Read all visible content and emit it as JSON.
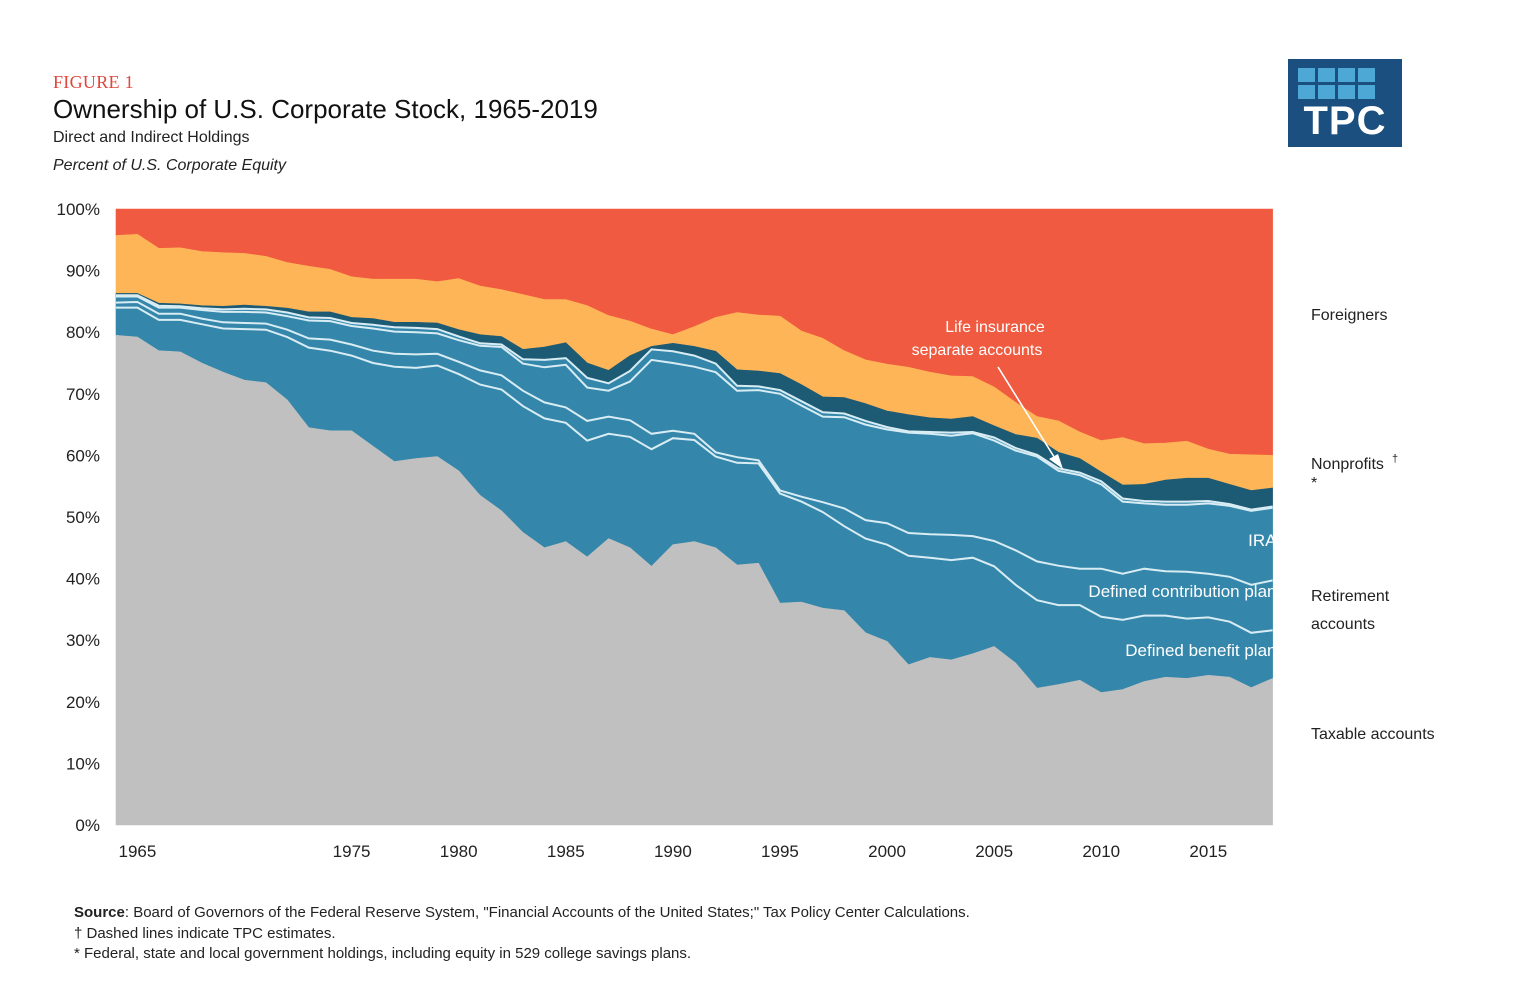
{
  "header": {
    "figure_label": "FIGURE 1",
    "title": "Ownership of U.S. Corporate Stock, 1965-2019",
    "subtitle": "Direct and Indirect Holdings",
    "unit": "Percent of U.S. Corporate Equity"
  },
  "logo": {
    "text": "TPC",
    "color": "#1b4f80",
    "accent": "#4ea8d6"
  },
  "colors": {
    "taxable": "#c0c0c0",
    "retirement": "#3486aa",
    "government": "#1d5a74",
    "nonprofits": "#fdb557",
    "foreigners": "#f05a40",
    "boundary_line": "#d8ecf4"
  },
  "chart_data": {
    "type": "area",
    "stacked": true,
    "ylim": [
      0,
      100
    ],
    "xlim": [
      1964,
      2019
    ],
    "y_ticks": [
      "0%",
      "10%",
      "20%",
      "30%",
      "40%",
      "50%",
      "60%",
      "70%",
      "80%",
      "90%",
      "100%"
    ],
    "x_ticks": [
      "1965",
      "1975",
      "1980",
      "1985",
      "1990",
      "1995",
      "2000",
      "2005",
      "2010",
      "2015"
    ],
    "x": [
      1964,
      1965,
      1966,
      1967,
      1968,
      1969,
      1970,
      1971,
      1972,
      1973,
      1974,
      1975,
      1976,
      1977,
      1978,
      1979,
      1980,
      1981,
      1982,
      1983,
      1984,
      1985,
      1986,
      1987,
      1988,
      1989,
      1990,
      1991,
      1992,
      1993,
      1994,
      1995,
      1996,
      1997,
      1998,
      1999,
      2000,
      2001,
      2002,
      2003,
      2004,
      2005,
      2006,
      2007,
      2008,
      2009,
      2010,
      2011,
      2012,
      2013,
      2014,
      2015,
      2016,
      2017,
      2018
    ],
    "boundaries_note": "cumulative percent, bottom to top",
    "boundaries": {
      "taxable_top": [
        79.5,
        79.2,
        77.0,
        76.8,
        75.0,
        73.5,
        72.2,
        71.8,
        69.0,
        64.5,
        64.0,
        64.0,
        61.5,
        59.0,
        59.5,
        59.8,
        57.5,
        53.5,
        51.0,
        47.5,
        45.0,
        46.0,
        43.5,
        46.5,
        45.0,
        42.0,
        45.5,
        46.0,
        45.0,
        42.2,
        42.5,
        36.0,
        36.2,
        35.2,
        34.8,
        31.2,
        29.8,
        26.0,
        27.2,
        26.8,
        27.8,
        29.0,
        26.3,
        22.2,
        22.8,
        23.5,
        21.5,
        22.0,
        23.3,
        24.0,
        23.8,
        24.3,
        24.0,
        22.3,
        23.8
      ],
      "db_top": [
        84.0,
        84.0,
        82.0,
        82.0,
        81.3,
        80.6,
        80.5,
        80.4,
        79.2,
        77.5,
        77.0,
        76.2,
        75.0,
        74.4,
        74.2,
        74.6,
        73.2,
        71.5,
        70.7,
        68.0,
        66.0,
        65.3,
        62.4,
        63.5,
        63.0,
        61.0,
        62.8,
        62.5,
        59.8,
        58.8,
        58.7,
        53.8,
        52.5,
        50.8,
        48.5,
        46.5,
        45.5,
        43.7,
        43.4,
        43.0,
        43.4,
        42.0,
        39.0,
        36.5,
        35.7,
        35.7,
        33.8,
        33.3,
        34.0,
        34.0,
        33.5,
        33.7,
        33.0,
        31.2,
        31.6
      ],
      "dc_top": [
        84.8,
        84.9,
        83.0,
        83.0,
        82.2,
        81.6,
        81.5,
        81.4,
        80.4,
        79.0,
        78.8,
        78.0,
        77.0,
        76.5,
        76.4,
        76.5,
        75.2,
        73.8,
        73.0,
        70.5,
        68.6,
        67.8,
        65.6,
        66.3,
        65.7,
        63.5,
        64.0,
        63.5,
        60.5,
        59.7,
        59.2,
        54.3,
        53.3,
        52.4,
        51.4,
        49.5,
        49.0,
        47.4,
        47.2,
        47.1,
        46.9,
        46.1,
        44.6,
        42.8,
        42.1,
        41.6,
        41.6,
        40.8,
        41.6,
        41.2,
        41.1,
        40.8,
        40.3,
        39.0,
        39.7
      ],
      "ira_top": [
        85.8,
        85.8,
        84.0,
        84.0,
        83.6,
        83.3,
        83.3,
        83.2,
        82.6,
        81.9,
        81.8,
        81.0,
        80.6,
        80.1,
        80.0,
        79.8,
        78.7,
        77.8,
        77.6,
        74.9,
        74.3,
        74.7,
        71.0,
        70.5,
        72.0,
        75.5,
        75.0,
        74.4,
        73.5,
        70.5,
        70.6,
        70.0,
        68.1,
        66.3,
        66.2,
        65.0,
        64.2,
        63.7,
        63.5,
        63.2,
        63.6,
        62.4,
        60.8,
        59.8,
        57.5,
        56.8,
        55.3,
        52.5,
        52.2,
        52.0,
        52.0,
        52.2,
        51.8,
        51.0,
        51.5
      ],
      "life_ins_top": [
        86.0,
        86.0,
        84.3,
        84.2,
        83.9,
        83.7,
        83.8,
        83.7,
        83.2,
        82.4,
        82.3,
        81.5,
        81.2,
        80.8,
        80.7,
        80.5,
        79.3,
        78.2,
        78.0,
        75.6,
        75.5,
        75.8,
        72.6,
        71.7,
        73.7,
        77.2,
        76.9,
        76.2,
        74.9,
        71.3,
        71.2,
        70.6,
        68.8,
        67.0,
        66.8,
        65.6,
        64.6,
        63.9,
        63.8,
        63.7,
        63.8,
        62.9,
        61.2,
        60.1,
        57.9,
        57.2,
        55.8,
        53.0,
        52.6,
        52.5,
        52.5,
        52.6,
        52.1,
        51.2,
        51.7
      ],
      "government_top": [
        86.3,
        86.3,
        84.7,
        84.6,
        84.3,
        84.2,
        84.4,
        84.2,
        83.9,
        83.3,
        83.3,
        82.4,
        82.2,
        81.6,
        81.6,
        81.5,
        80.4,
        79.6,
        79.3,
        77.2,
        77.6,
        78.3,
        75.0,
        73.8,
        76.2,
        77.7,
        78.2,
        77.7,
        76.9,
        73.9,
        73.7,
        73.3,
        71.5,
        69.5,
        69.4,
        68.4,
        67.2,
        66.6,
        66.1,
        65.9,
        66.3,
        64.8,
        63.4,
        62.8,
        60.5,
        59.5,
        57.3,
        55.2,
        55.3,
        56.0,
        56.3,
        56.3,
        55.3,
        54.3,
        54.7
      ],
      "nonprofits_top": [
        95.7,
        95.9,
        93.6,
        93.7,
        93.1,
        92.9,
        92.8,
        92.3,
        91.3,
        90.7,
        90.2,
        89.0,
        88.6,
        88.6,
        88.6,
        88.2,
        88.7,
        87.5,
        86.9,
        86.1,
        85.3,
        85.3,
        84.3,
        82.7,
        81.8,
        80.5,
        79.6,
        80.9,
        82.4,
        83.2,
        82.8,
        82.6,
        80.2,
        79.0,
        77.0,
        75.5,
        74.8,
        74.3,
        73.5,
        72.9,
        72.8,
        71.1,
        68.6,
        66.3,
        65.6,
        63.8,
        62.4,
        62.9,
        61.9,
        62.0,
        62.3,
        61.0,
        60.2,
        60.1,
        60.0
      ],
      "foreigners_top": [
        100,
        100,
        100,
        100,
        100,
        100,
        100,
        100,
        100,
        100,
        100,
        100,
        100,
        100,
        100,
        100,
        100,
        100,
        100,
        100,
        100,
        100,
        100,
        100,
        100,
        100,
        100,
        100,
        100,
        100,
        100,
        100,
        100,
        100,
        100,
        100,
        100,
        100,
        100,
        100,
        100,
        100,
        100,
        100,
        100,
        100,
        100,
        100,
        100,
        100,
        100,
        100,
        100,
        100,
        100
      ]
    },
    "series": [
      {
        "name": "Taxable accounts"
      },
      {
        "name": "Defined benefit plans"
      },
      {
        "name": "Defined contribution plans"
      },
      {
        "name": "IRAs"
      },
      {
        "name": "Life insurance separate accounts"
      },
      {
        "name": "*"
      },
      {
        "name": "Nonprofits†"
      },
      {
        "name": "Foreigners"
      }
    ],
    "right_labels": {
      "foreigners": "Foreigners",
      "nonprofits": "Nonprofits",
      "nonprofits_mark": "†",
      "government": "*",
      "retirement_1": "Retirement",
      "retirement_2": "accounts",
      "taxable": "Taxable accounts"
    },
    "inner_labels": {
      "iras": "IRAs",
      "dc": "Defined contribution plans",
      "db": "Defined benefit plans",
      "life_1": "Life insurance",
      "life_2": "separate accounts"
    }
  },
  "notes": {
    "source_label": "Source",
    "source_text": ": Board of Governors of the Federal Reserve System,  \"Financial Accounts of the United States;\" Tax Policy Center Calculations.",
    "dagger_note": "† Dashed lines indicate TPC estimates.",
    "star_note": "* Federal, state and local government holdings, including equity in 529 college savings plans."
  }
}
